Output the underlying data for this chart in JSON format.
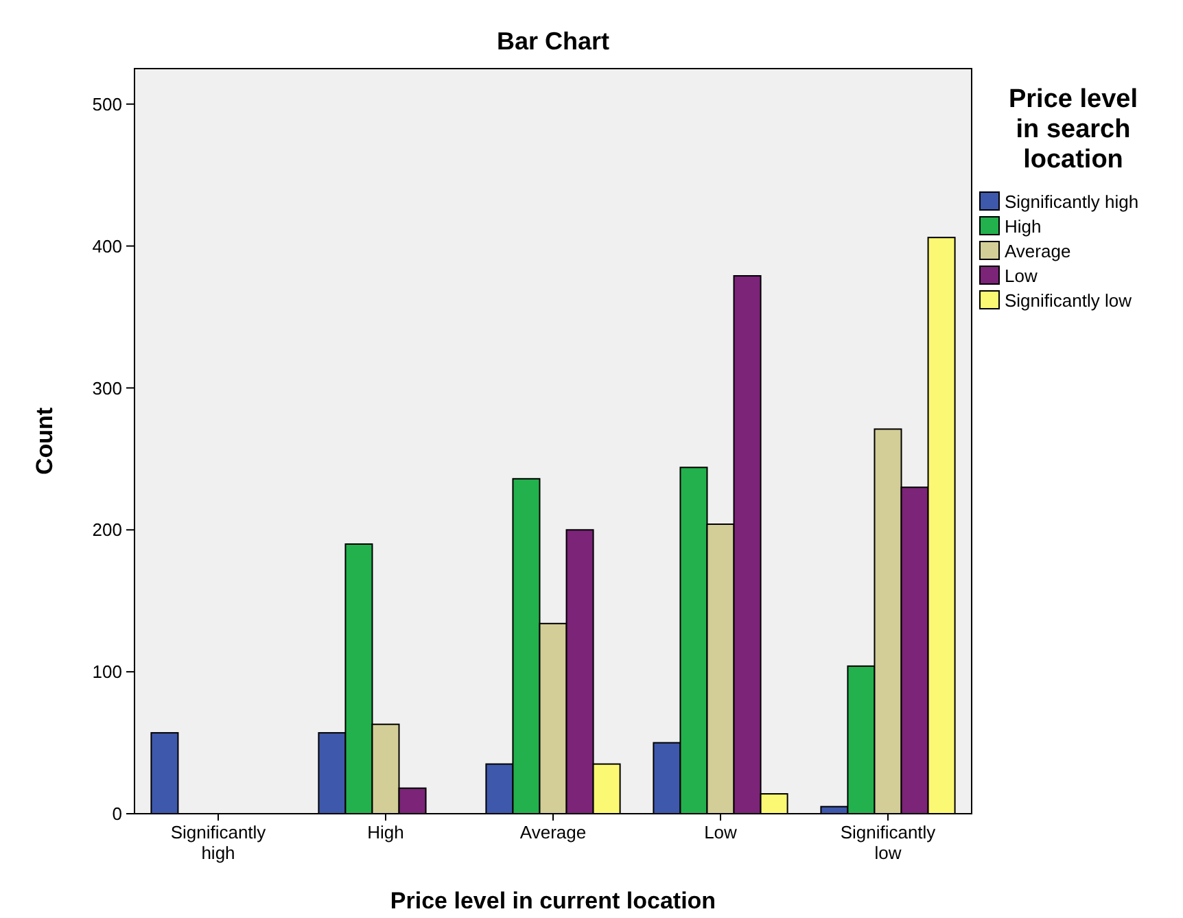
{
  "chart_data": {
    "type": "bar",
    "title": "Bar Chart",
    "xlabel": "Price level in current location",
    "ylabel": "Count",
    "legend_title": "Price level in search location",
    "categories": [
      "Significantly high",
      "High",
      "Average",
      "Low",
      "Significantly low"
    ],
    "series": [
      {
        "name": "Significantly high",
        "color": "#3e58ac",
        "values": [
          57,
          57,
          35,
          50,
          5
        ]
      },
      {
        "name": "High",
        "color": "#23b14d",
        "values": [
          null,
          190,
          236,
          244,
          104
        ]
      },
      {
        "name": "Average",
        "color": "#d3ce97",
        "values": [
          null,
          63,
          134,
          204,
          271
        ]
      },
      {
        "name": "Low",
        "color": "#7b2478",
        "values": [
          null,
          18,
          200,
          379,
          230
        ]
      },
      {
        "name": "Significantly low",
        "color": "#fbf873",
        "values": [
          null,
          null,
          35,
          14,
          406
        ]
      }
    ],
    "ylim": [
      0,
      525
    ],
    "yticks": [
      0,
      100,
      200,
      300,
      400,
      500
    ],
    "legend": "right"
  }
}
